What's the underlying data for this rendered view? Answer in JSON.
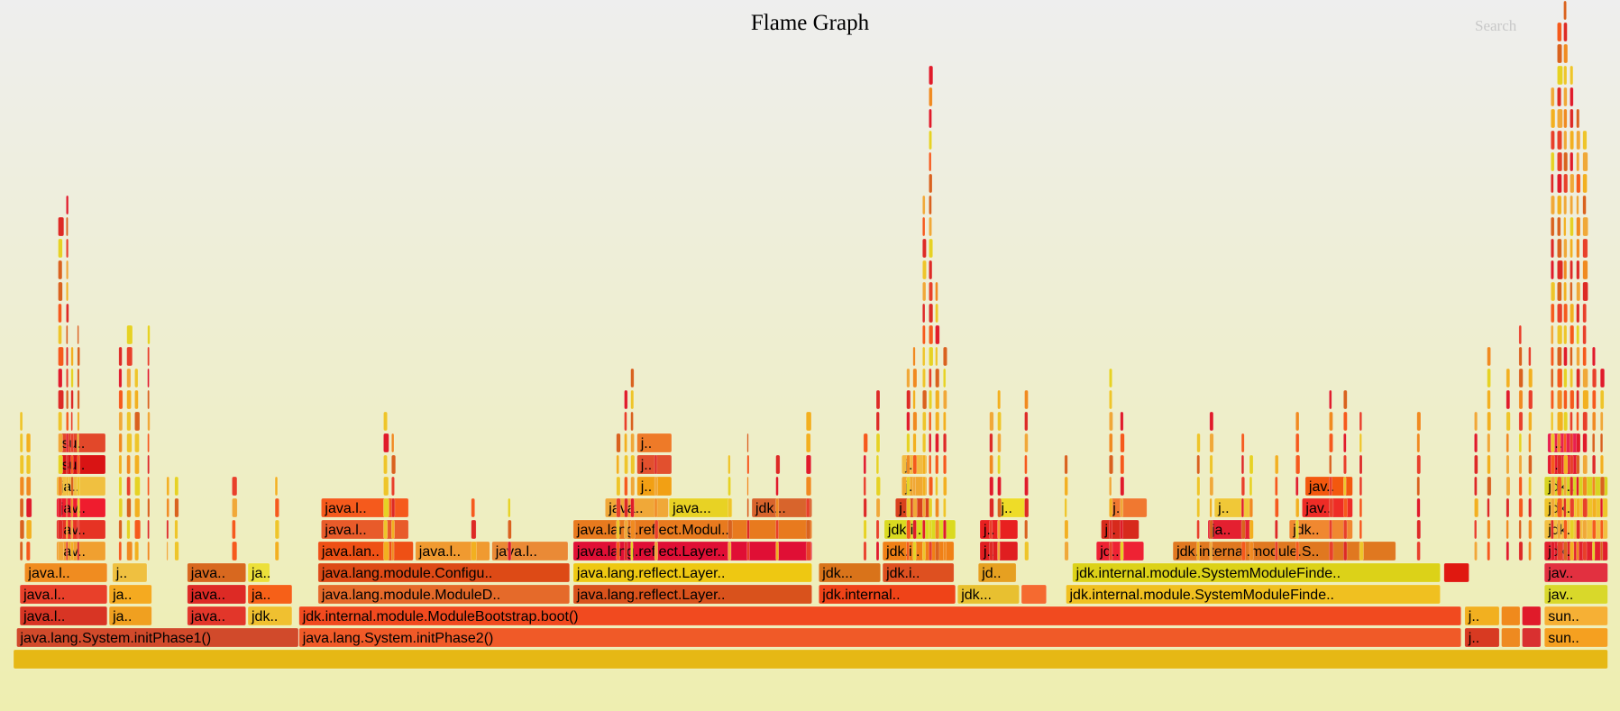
{
  "header": {
    "title": "Flame Graph",
    "search_label": "Search"
  },
  "chart_data": {
    "type": "flamegraph",
    "title": "Flame Graph",
    "total_samples": 1000,
    "frames": [
      {
        "label": "",
        "start": 0,
        "width": 1000,
        "depth": 0,
        "color": "#e6b815"
      },
      {
        "label": "java.lang.System.initPhase1()",
        "start": 2,
        "width": 177,
        "depth": 1,
        "color": "#d14a2b"
      },
      {
        "label": "java.lang.System.initPhase2()",
        "start": 179,
        "width": 729,
        "depth": 1,
        "color": "#f05a28"
      },
      {
        "label": "j..",
        "start": 910,
        "width": 22,
        "depth": 1,
        "color": "#d83a22"
      },
      {
        "label": "",
        "start": 933,
        "width": 12,
        "depth": 1,
        "color": "#ee8a20"
      },
      {
        "label": "",
        "start": 946,
        "width": 12,
        "depth": 1,
        "color": "#d93030"
      },
      {
        "label": "sun..",
        "start": 960,
        "width": 40,
        "depth": 1,
        "color": "#f5a020"
      },
      {
        "label": "java.l..",
        "start": 4,
        "width": 55,
        "depth": 2,
        "color": "#d83524"
      },
      {
        "label": "ja..",
        "start": 60,
        "width": 27,
        "depth": 2,
        "color": "#f0a020"
      },
      {
        "label": "java..",
        "start": 109,
        "width": 37,
        "depth": 2,
        "color": "#e2362a"
      },
      {
        "label": "jdk..",
        "start": 147,
        "width": 28,
        "depth": 2,
        "color": "#f0c030"
      },
      {
        "label": "jdk.internal.module.ModuleBootstrap.boot()",
        "start": 179,
        "width": 729,
        "depth": 2,
        "color": "#f14a1f"
      },
      {
        "label": "j..",
        "start": 910,
        "width": 22,
        "depth": 2,
        "color": "#f2b020"
      },
      {
        "label": "",
        "start": 933,
        "width": 12,
        "depth": 2,
        "color": "#f08a1c"
      },
      {
        "label": "",
        "start": 946,
        "width": 12,
        "depth": 2,
        "color": "#e01b2a"
      },
      {
        "label": "sun..",
        "start": 960,
        "width": 40,
        "depth": 2,
        "color": "#f6b035"
      },
      {
        "label": "java.l..",
        "start": 4,
        "width": 55,
        "depth": 3,
        "color": "#e8402a"
      },
      {
        "label": "ja..",
        "start": 60,
        "width": 27,
        "depth": 3,
        "color": "#f5aa20"
      },
      {
        "label": "java..",
        "start": 109,
        "width": 37,
        "depth": 3,
        "color": "#dd2a25"
      },
      {
        "label": "ja..",
        "start": 147,
        "width": 28,
        "depth": 3,
        "color": "#f66018"
      },
      {
        "label": "java.lang.module.ModuleD..",
        "start": 191,
        "width": 158,
        "depth": 3,
        "color": "#e56a2a"
      },
      {
        "label": "java.lang.reflect.Layer..",
        "start": 351,
        "width": 150,
        "depth": 3,
        "color": "#d9521c"
      },
      {
        "label": "jdk.internal..",
        "start": 505,
        "width": 86,
        "depth": 3,
        "color": "#ef4318"
      },
      {
        "label": "jdk...",
        "start": 592,
        "width": 39,
        "depth": 3,
        "color": "#e8c030"
      },
      {
        "label": "",
        "start": 632,
        "width": 16,
        "depth": 3,
        "color": "#f56a30"
      },
      {
        "label": "jdk.internal.module.SystemModuleFinde..",
        "start": 660,
        "width": 235,
        "depth": 3,
        "color": "#f0c020"
      },
      {
        "label": "jav..",
        "start": 960,
        "width": 40,
        "depth": 3,
        "color": "#d9d82a"
      },
      {
        "label": "java.l..",
        "start": 7,
        "width": 52,
        "depth": 4,
        "color": "#f08c20"
      },
      {
        "label": "j..",
        "start": 62,
        "width": 22,
        "depth": 4,
        "color": "#efc040"
      },
      {
        "label": "java..",
        "start": 109,
        "width": 37,
        "depth": 4,
        "color": "#d8681f"
      },
      {
        "label": "ja..",
        "start": 147,
        "width": 14,
        "depth": 4,
        "color": "#ece03a"
      },
      {
        "label": "java.lang.module.Configu..",
        "start": 191,
        "width": 158,
        "depth": 4,
        "color": "#dd4a16"
      },
      {
        "label": "java.lang.reflect.Layer..",
        "start": 351,
        "width": 150,
        "depth": 4,
        "color": "#eec812"
      },
      {
        "label": "jdk...",
        "start": 505,
        "width": 39,
        "depth": 4,
        "color": "#d9731a"
      },
      {
        "label": "jdk.i..",
        "start": 545,
        "width": 45,
        "depth": 4,
        "color": "#de5020"
      },
      {
        "label": "jd..",
        "start": 605,
        "width": 24,
        "depth": 4,
        "color": "#e6a021"
      },
      {
        "label": "jdk.internal.module.SystemModuleFinde..",
        "start": 664,
        "width": 231,
        "depth": 4,
        "color": "#dcd218"
      },
      {
        "label": "",
        "start": 897,
        "width": 16,
        "depth": 4,
        "color": "#e01810"
      },
      {
        "label": "jav..",
        "start": 960,
        "width": 40,
        "depth": 4,
        "color": "#e23040"
      },
      {
        "label": "jav..",
        "start": 27,
        "width": 31,
        "depth": 5,
        "color": "#f0a030"
      },
      {
        "label": "java.lan..",
        "start": 191,
        "width": 60,
        "depth": 5,
        "color": "#ee5015"
      },
      {
        "label": "java.l..",
        "start": 252,
        "width": 47,
        "depth": 5,
        "color": "#f09a30"
      },
      {
        "label": "java.l..",
        "start": 300,
        "width": 48,
        "depth": 5,
        "color": "#ea8a36"
      },
      {
        "label": "java.lang.reflect.Layer..",
        "start": 351,
        "width": 150,
        "depth": 5,
        "color": "#e00f35"
      },
      {
        "label": "jdk.i..",
        "start": 545,
        "width": 45,
        "depth": 5,
        "color": "#f08016"
      },
      {
        "label": "j..",
        "start": 606,
        "width": 24,
        "depth": 5,
        "color": "#e01e20"
      },
      {
        "label": "jd..",
        "start": 679,
        "width": 30,
        "depth": 5,
        "color": "#ee2233"
      },
      {
        "label": "jdk.internal.module.S..",
        "start": 727,
        "width": 140,
        "depth": 5,
        "color": "#e07820"
      },
      {
        "label": "jdk..",
        "start": 960,
        "width": 40,
        "depth": 5,
        "color": "#e2202c"
      },
      {
        "label": "jav..",
        "start": 27,
        "width": 31,
        "depth": 6,
        "color": "#e63324"
      },
      {
        "label": "java.l..",
        "start": 193,
        "width": 55,
        "depth": 6,
        "color": "#e85b2a"
      },
      {
        "label": "java.lang.reflect.Modul..",
        "start": 351,
        "width": 150,
        "depth": 6,
        "color": "#e87a1e"
      },
      {
        "label": "j..",
        "start": 546,
        "width": 24,
        "depth": 6,
        "color": "#f3b12a"
      },
      {
        "label": "jdk.i..",
        "start": 546,
        "width": 45,
        "depth": 6,
        "color": "#dada20"
      },
      {
        "label": "j..",
        "start": 606,
        "width": 24,
        "depth": 6,
        "color": "#e82020"
      },
      {
        "label": "j..",
        "start": 682,
        "width": 24,
        "depth": 6,
        "color": "#d72a1c"
      },
      {
        "label": "ja..",
        "start": 749,
        "width": 28,
        "depth": 6,
        "color": "#e42030"
      },
      {
        "label": "jdk..",
        "start": 800,
        "width": 40,
        "depth": 6,
        "color": "#f08830"
      },
      {
        "label": "jdk..",
        "start": 960,
        "width": 40,
        "depth": 6,
        "color": "#f2c040"
      },
      {
        "label": "jav..",
        "start": 27,
        "width": 31,
        "depth": 7,
        "color": "#ef1c2e"
      },
      {
        "label": "java.l..",
        "start": 193,
        "width": 55,
        "depth": 7,
        "color": "#f55a1c"
      },
      {
        "label": "java..",
        "start": 371,
        "width": 40,
        "depth": 7,
        "color": "#f0a838"
      },
      {
        "label": "java...",
        "start": 411,
        "width": 40,
        "depth": 7,
        "color": "#e8d224"
      },
      {
        "label": "jdk...",
        "start": 463,
        "width": 38,
        "depth": 7,
        "color": "#d8642c"
      },
      {
        "label": "j..",
        "start": 553,
        "width": 22,
        "depth": 7,
        "color": "#d9421e"
      },
      {
        "label": "j..",
        "start": 617,
        "width": 20,
        "depth": 7,
        "color": "#eedc28"
      },
      {
        "label": "j..",
        "start": 687,
        "width": 24,
        "depth": 7,
        "color": "#f07830"
      },
      {
        "label": "j..",
        "start": 753,
        "width": 24,
        "depth": 7,
        "color": "#f0c838"
      },
      {
        "label": "jav..",
        "start": 808,
        "width": 32,
        "depth": 7,
        "color": "#ee2c26"
      },
      {
        "label": "jdk..",
        "start": 960,
        "width": 40,
        "depth": 7,
        "color": "#eec52a"
      },
      {
        "label": "ja..",
        "start": 27,
        "width": 31,
        "depth": 8,
        "color": "#f0c040"
      },
      {
        "label": "j..",
        "start": 391,
        "width": 22,
        "depth": 8,
        "color": "#f2a014"
      },
      {
        "label": "j..",
        "start": 557,
        "width": 16,
        "depth": 8,
        "color": "#f0a830"
      },
      {
        "label": "jav..",
        "start": 810,
        "width": 30,
        "depth": 8,
        "color": "#f3580e"
      },
      {
        "label": "jdk..",
        "start": 960,
        "width": 40,
        "depth": 8,
        "color": "#d8d420"
      },
      {
        "label": "su..",
        "start": 28,
        "width": 30,
        "depth": 9,
        "color": "#d91414"
      },
      {
        "label": "j..",
        "start": 391,
        "width": 22,
        "depth": 9,
        "color": "#e2502e"
      },
      {
        "label": "j..",
        "start": 557,
        "width": 16,
        "depth": 9,
        "color": "#f1bc42"
      },
      {
        "label": "j..",
        "start": 962,
        "width": 20,
        "depth": 9,
        "color": "#e31a30"
      },
      {
        "label": "su..",
        "start": 28,
        "width": 30,
        "depth": 10,
        "color": "#e2482a"
      },
      {
        "label": "j..",
        "start": 391,
        "width": 22,
        "depth": 10,
        "color": "#ee7a28"
      },
      {
        "label": "j..",
        "start": 962,
        "width": 20,
        "depth": 10,
        "color": "#e82050"
      }
    ]
  }
}
